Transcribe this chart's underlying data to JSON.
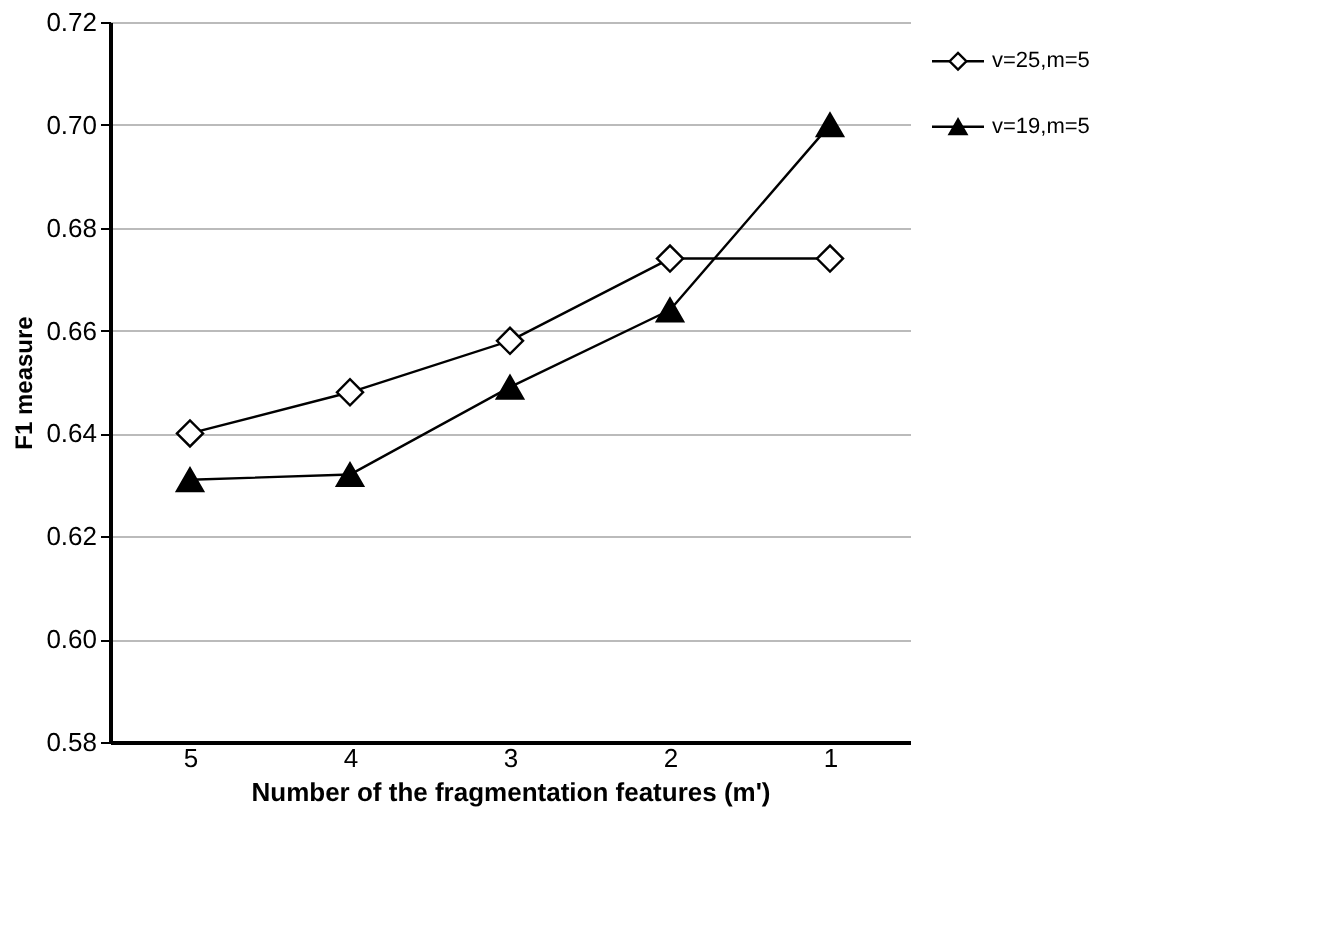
{
  "chart_data": {
    "type": "line",
    "xlabel": "Number of the fragmentation features (m')",
    "ylabel": "F1 measure",
    "categories": [
      "5",
      "4",
      "3",
      "2",
      "1"
    ],
    "series": [
      {
        "name": "v=25,m=5",
        "color": "#000000",
        "marker": "diamond",
        "values": [
          0.64,
          0.648,
          0.658,
          0.674,
          0.674
        ]
      },
      {
        "name": "v=19,m=5",
        "color": "#000000",
        "marker": "triangle",
        "values": [
          0.631,
          0.632,
          0.649,
          0.664,
          0.7
        ]
      }
    ],
    "ylim": [
      0.58,
      0.72
    ],
    "yticks": [
      0.58,
      {
        "value": 0.6,
        "label": "0.60"
      },
      0.62,
      0.64,
      0.66,
      0.68,
      {
        "value": 0.7,
        "label": "0.70"
      },
      0.72
    ],
    "grid": "y",
    "legend": "right",
    "line_style": "solid"
  }
}
